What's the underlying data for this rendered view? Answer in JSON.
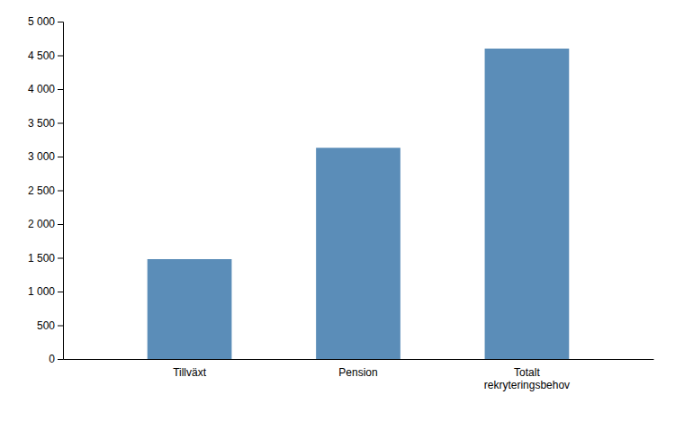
{
  "chart_data": {
    "type": "bar",
    "categories": [
      "Tillväxt",
      "Pension",
      "Totalt\nrekryteringsbehov"
    ],
    "values": [
      1480,
      3130,
      4600
    ],
    "color": "#5b8db8",
    "ylim": [
      0,
      5000
    ],
    "yticks": [
      0,
      500,
      {
        "value": 1000,
        "label": "1 000"
      },
      {
        "value": 1500,
        "label": "1 500"
      },
      {
        "value": 2000,
        "label": "2 000"
      },
      {
        "value": 2500,
        "label": "2 500"
      },
      {
        "value": 3000,
        "label": "3 000"
      },
      {
        "value": 3500,
        "label": "3 500"
      },
      {
        "value": 4000,
        "label": "4 000"
      },
      {
        "value": 4500,
        "label": "4 500"
      },
      {
        "value": 5000,
        "label": "5 000"
      }
    ],
    "grid": false
  }
}
